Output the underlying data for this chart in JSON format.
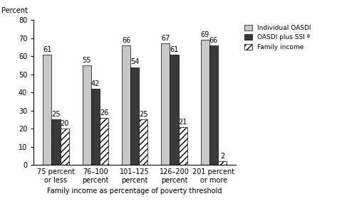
{
  "categories": [
    "75 percent\nor less",
    "76–100\npercent",
    "101–125\npercent",
    "126–200\npercent",
    "201 percent\nor more"
  ],
  "individual_oasdi": [
    61,
    55,
    66,
    67,
    69
  ],
  "oasdi_plus_ssi": [
    25,
    42,
    54,
    61,
    66
  ],
  "family_income": [
    20,
    26,
    25,
    21,
    2
  ],
  "color_individual": "#c8c8c8",
  "color_oasdi_ssi": "#3a3a3a",
  "ylabel": "Percent",
  "xlabel": "Family income as percentage of poverty threshold",
  "ylim": [
    0,
    80
  ],
  "yticks": [
    0,
    10,
    20,
    30,
    40,
    50,
    60,
    70,
    80
  ],
  "legend_labels": [
    "Individual OASDI",
    "OASDI plus SSI ª",
    "Family income"
  ],
  "bar_width": 0.22,
  "label_fontsize": 7,
  "tick_fontsize": 7
}
